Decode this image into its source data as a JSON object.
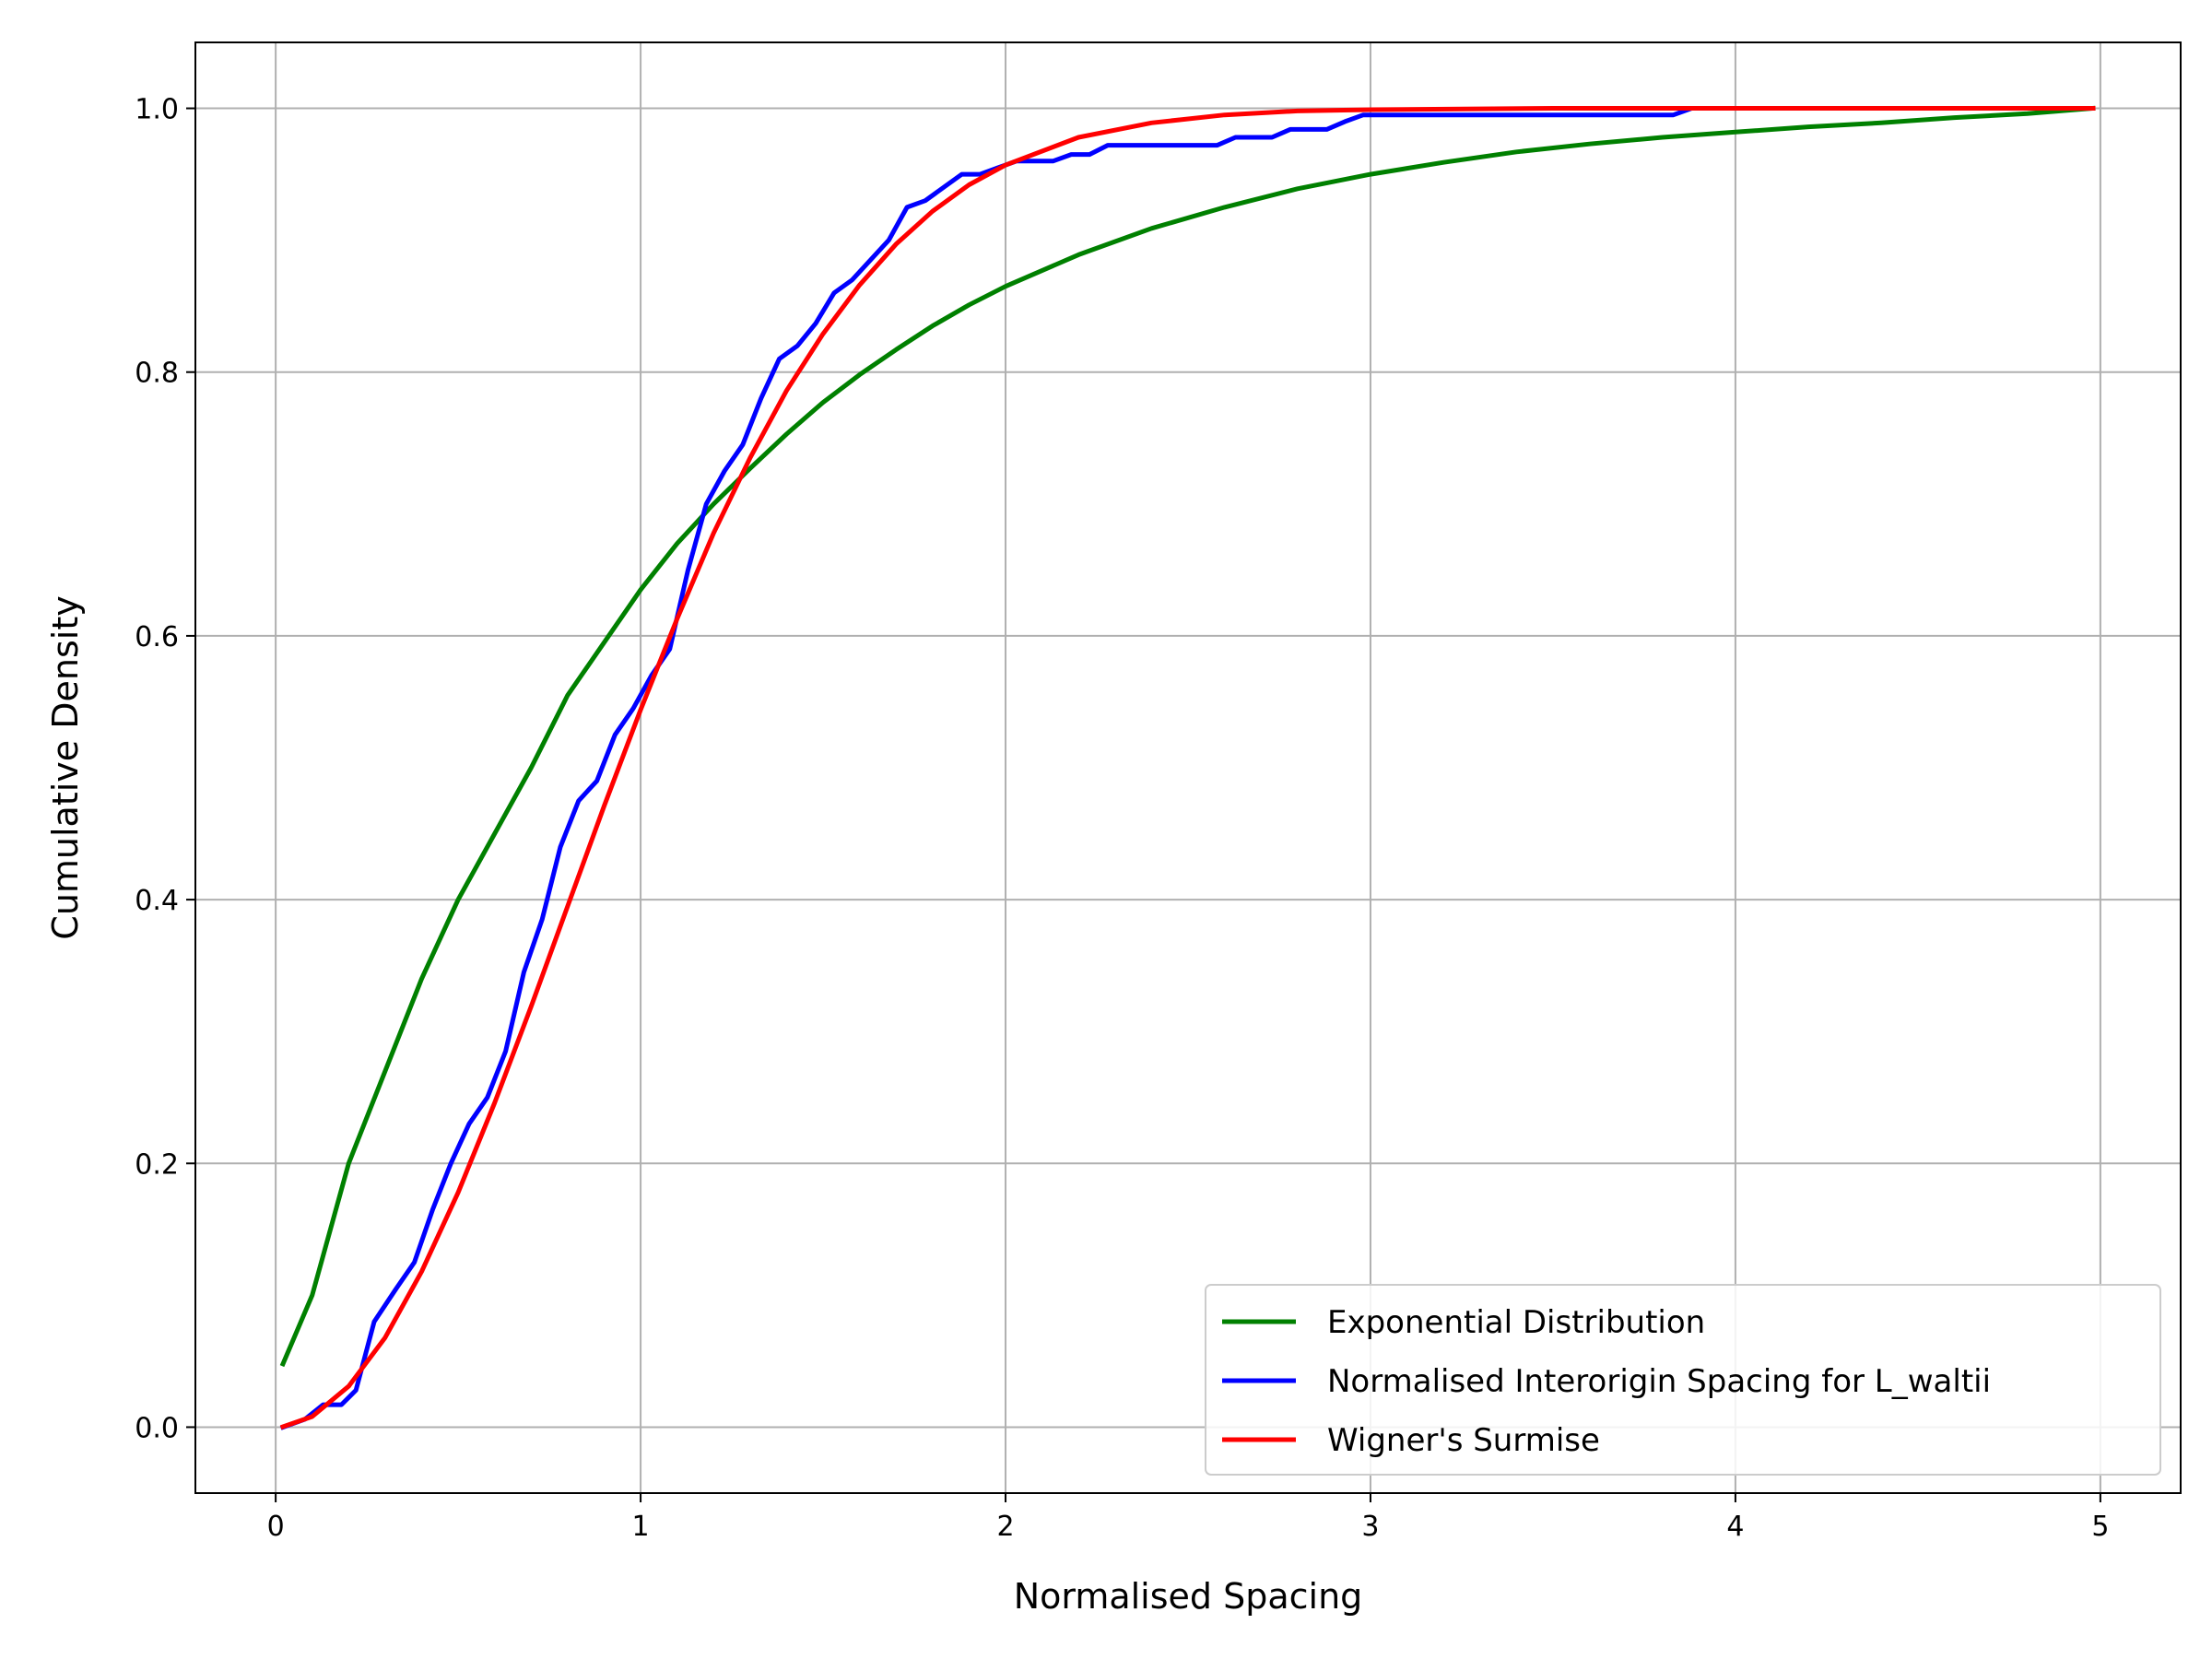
{
  "chart_data": {
    "type": "line",
    "xlabel": "Normalised Spacing",
    "ylabel": "Cumulative Density",
    "xlim": [
      -0.22,
      5.22
    ],
    "ylim": [
      -0.05,
      1.05
    ],
    "xticks": [
      0,
      1,
      2,
      3,
      4,
      5
    ],
    "xtick_labels": [
      "0",
      "1",
      "2",
      "3",
      "4",
      "5"
    ],
    "yticks": [
      0.0,
      0.2,
      0.4,
      0.6,
      0.8,
      1.0
    ],
    "ytick_labels": [
      "0.0",
      "0.2",
      "0.4",
      "0.6",
      "0.8",
      "1.0"
    ],
    "grid": true,
    "legend_position": "lower-right",
    "series": [
      {
        "name": "Exponential Distribution",
        "color": "#008000",
        "points": [
          [
            0.02,
            0.048
          ],
          [
            0.1,
            0.1
          ],
          [
            0.2,
            0.2
          ],
          [
            0.3,
            0.27
          ],
          [
            0.4,
            0.34
          ],
          [
            0.5,
            0.4
          ],
          [
            0.6,
            0.45
          ],
          [
            0.7,
            0.5
          ],
          [
            0.8,
            0.555
          ],
          [
            0.9,
            0.595
          ],
          [
            1.0,
            0.635
          ],
          [
            1.1,
            0.67
          ],
          [
            1.2,
            0.7
          ],
          [
            1.3,
            0.727
          ],
          [
            1.4,
            0.753
          ],
          [
            1.5,
            0.777
          ],
          [
            1.6,
            0.798
          ],
          [
            1.7,
            0.817
          ],
          [
            1.8,
            0.835
          ],
          [
            1.9,
            0.851
          ],
          [
            2.0,
            0.865
          ],
          [
            2.2,
            0.889
          ],
          [
            2.4,
            0.909
          ],
          [
            2.6,
            0.925
          ],
          [
            2.8,
            0.939
          ],
          [
            3.0,
            0.95
          ],
          [
            3.2,
            0.959
          ],
          [
            3.4,
            0.967
          ],
          [
            3.6,
            0.973
          ],
          [
            3.8,
            0.978
          ],
          [
            4.0,
            0.982
          ],
          [
            4.2,
            0.986
          ],
          [
            4.4,
            0.989
          ],
          [
            4.6,
            0.993
          ],
          [
            4.8,
            0.996
          ],
          [
            4.98,
            1.0
          ]
        ]
      },
      {
        "name": "Normalised Interorigin Spacing for L_waltii",
        "color": "#0000ff",
        "points": [
          [
            0.02,
            0.0
          ],
          [
            0.08,
            0.006
          ],
          [
            0.13,
            0.017
          ],
          [
            0.18,
            0.017
          ],
          [
            0.22,
            0.028
          ],
          [
            0.27,
            0.08
          ],
          [
            0.33,
            0.105
          ],
          [
            0.38,
            0.125
          ],
          [
            0.43,
            0.165
          ],
          [
            0.48,
            0.2
          ],
          [
            0.53,
            0.23
          ],
          [
            0.58,
            0.25
          ],
          [
            0.63,
            0.285
          ],
          [
            0.68,
            0.345
          ],
          [
            0.73,
            0.385
          ],
          [
            0.78,
            0.44
          ],
          [
            0.83,
            0.475
          ],
          [
            0.88,
            0.49
          ],
          [
            0.93,
            0.525
          ],
          [
            0.98,
            0.545
          ],
          [
            1.03,
            0.57
          ],
          [
            1.08,
            0.59
          ],
          [
            1.13,
            0.65
          ],
          [
            1.18,
            0.7
          ],
          [
            1.23,
            0.725
          ],
          [
            1.28,
            0.745
          ],
          [
            1.33,
            0.78
          ],
          [
            1.38,
            0.81
          ],
          [
            1.43,
            0.82
          ],
          [
            1.48,
            0.837
          ],
          [
            1.53,
            0.86
          ],
          [
            1.58,
            0.87
          ],
          [
            1.63,
            0.885
          ],
          [
            1.68,
            0.9
          ],
          [
            1.73,
            0.925
          ],
          [
            1.78,
            0.93
          ],
          [
            1.83,
            0.94
          ],
          [
            1.88,
            0.95
          ],
          [
            1.93,
            0.95
          ],
          [
            1.98,
            0.955
          ],
          [
            2.03,
            0.96
          ],
          [
            2.13,
            0.96
          ],
          [
            2.18,
            0.965
          ],
          [
            2.23,
            0.965
          ],
          [
            2.28,
            0.972
          ],
          [
            2.58,
            0.972
          ],
          [
            2.63,
            0.978
          ],
          [
            2.73,
            0.978
          ],
          [
            2.78,
            0.984
          ],
          [
            2.88,
            0.984
          ],
          [
            2.93,
            0.99
          ],
          [
            2.98,
            0.995
          ],
          [
            3.83,
            0.995
          ],
          [
            3.88,
            1.0
          ],
          [
            4.98,
            1.0
          ]
        ]
      },
      {
        "name": "Wigner's Surmise",
        "color": "#ff0000",
        "points": [
          [
            0.02,
            0.0003
          ],
          [
            0.1,
            0.008
          ],
          [
            0.2,
            0.031
          ],
          [
            0.3,
            0.068
          ],
          [
            0.4,
            0.118
          ],
          [
            0.5,
            0.178
          ],
          [
            0.6,
            0.246
          ],
          [
            0.7,
            0.319
          ],
          [
            0.8,
            0.395
          ],
          [
            0.9,
            0.471
          ],
          [
            1.0,
            0.544
          ],
          [
            1.1,
            0.613
          ],
          [
            1.2,
            0.678
          ],
          [
            1.3,
            0.735
          ],
          [
            1.4,
            0.786
          ],
          [
            1.5,
            0.829
          ],
          [
            1.6,
            0.866
          ],
          [
            1.7,
            0.897
          ],
          [
            1.8,
            0.922
          ],
          [
            1.9,
            0.942
          ],
          [
            2.0,
            0.957
          ],
          [
            2.2,
            0.978
          ],
          [
            2.4,
            0.989
          ],
          [
            2.6,
            0.995
          ],
          [
            2.8,
            0.998
          ],
          [
            3.0,
            0.999
          ],
          [
            3.5,
            1.0
          ],
          [
            4.0,
            1.0
          ],
          [
            4.98,
            1.0
          ]
        ]
      }
    ]
  }
}
